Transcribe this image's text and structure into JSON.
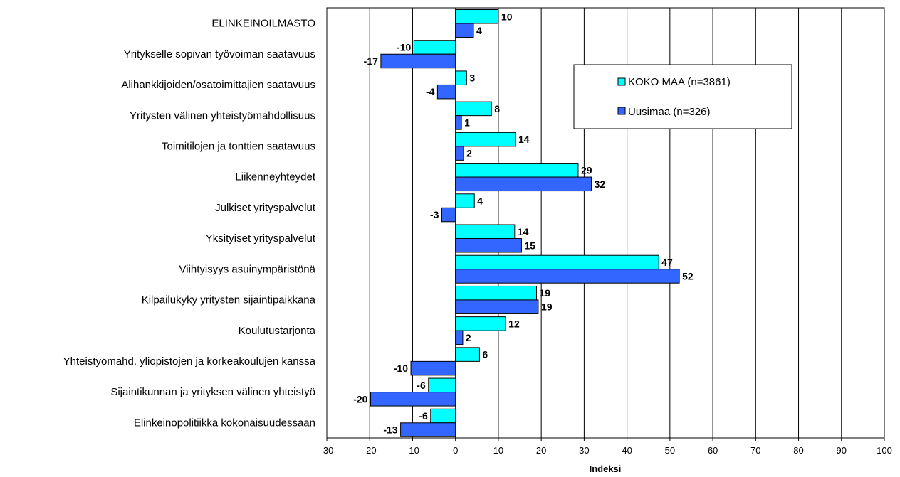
{
  "chart_data": {
    "type": "bar",
    "orientation": "horizontal",
    "title": "",
    "xlabel": "Indeksi",
    "ylabel": "",
    "xlim": [
      -30,
      100
    ],
    "x_ticks": [
      -30,
      -20,
      -10,
      0,
      10,
      20,
      30,
      40,
      50,
      60,
      70,
      80,
      90,
      100
    ],
    "grid": "vertical",
    "legend_position": "upper-right",
    "categories": [
      "ELINKEINOILMASTO",
      "Yritykselle sopivan työvoiman saatavuus",
      "Alihankkijoiden/osatoimittajien saatavuus",
      "Yritysten välinen yhteistyömahdollisuus",
      "Toimitilojen ja tonttien saatavuus",
      "Liikenneyhteydet",
      "Julkiset yrityspalvelut",
      "Yksityiset yrityspalvelut",
      "Viihtyisyys asuinympäristönä",
      "Kilpailukyky yritysten sijaintipaikkana",
      "Koulutustarjonta",
      "Yhteistyömahd. yliopistojen ja korkeakoulujen kanssa",
      "Sijaintikunnan ja yrityksen välinen yhteistyö",
      "Elinkeinopolitiikka kokonaisuudessaan"
    ],
    "series": [
      {
        "name": "KOKO MAA (n=3861)",
        "color": "#00FFFF",
        "values": [
          10,
          -10,
          3,
          8,
          14,
          29,
          4,
          14,
          47,
          19,
          12,
          6,
          -6,
          -6
        ],
        "bar_values": [
          10,
          -9.7,
          2.6,
          8.4,
          14,
          28.6,
          4.4,
          13.8,
          47.4,
          18.9,
          11.7,
          5.6,
          -6.3,
          -5.8
        ],
        "labels": [
          "10",
          "-10",
          "3",
          "8",
          "14",
          "29",
          "4",
          "14",
          "47",
          "19",
          "12",
          "6",
          "-6",
          "-6"
        ]
      },
      {
        "name": "Uusimaa (n=326)",
        "color": "#3366FF",
        "values": [
          4,
          -17,
          -4,
          1,
          2,
          32,
          -3,
          15,
          52,
          19,
          2,
          -10,
          -20,
          -13
        ],
        "bar_values": [
          4.2,
          -17.4,
          -4.2,
          1.4,
          1.9,
          31.7,
          -3.2,
          15.4,
          52.2,
          19.3,
          1.7,
          -10.4,
          -19.8,
          -12.8
        ],
        "labels": [
          "4",
          "-17",
          "-4",
          "1",
          "2",
          "32",
          "-3",
          "15",
          "52",
          "19",
          "2",
          "-10",
          "-20",
          "-13"
        ]
      }
    ]
  }
}
